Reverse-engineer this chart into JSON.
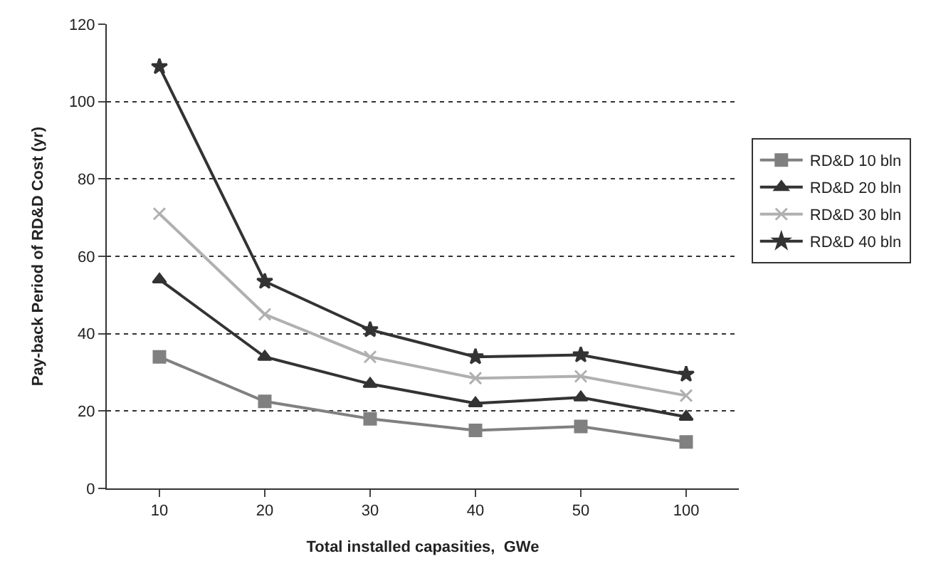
{
  "chart_data": {
    "type": "line",
    "xlabel": "Total installed capasities,  GWe",
    "ylabel": "Pay-back Period of RD&D Cost (yr)",
    "categories": [
      "10",
      "20",
      "30",
      "40",
      "50",
      "100"
    ],
    "series": [
      {
        "name": "RD&D 10 bln",
        "color": "#808080",
        "marker": "square",
        "values": [
          34,
          22.5,
          18,
          15,
          16,
          12
        ]
      },
      {
        "name": "RD&D 20 bln",
        "color": "#333333",
        "marker": "triangle",
        "values": [
          54,
          34,
          27,
          22,
          23.5,
          18.5
        ]
      },
      {
        "name": "RD&D 30 bln",
        "color": "#b0b0b0",
        "marker": "cross",
        "values": [
          71,
          45,
          34,
          28.5,
          29,
          24
        ]
      },
      {
        "name": "RD&D 40 bln",
        "color": "#333333",
        "marker": "star",
        "values": [
          109,
          53.5,
          41,
          34,
          34.5,
          29.5
        ]
      }
    ],
    "ylim": [
      0,
      120
    ],
    "yticks": [
      0,
      20,
      40,
      60,
      80,
      100,
      120
    ],
    "grid": "y",
    "legend": "right",
    "line_style": "solid"
  }
}
